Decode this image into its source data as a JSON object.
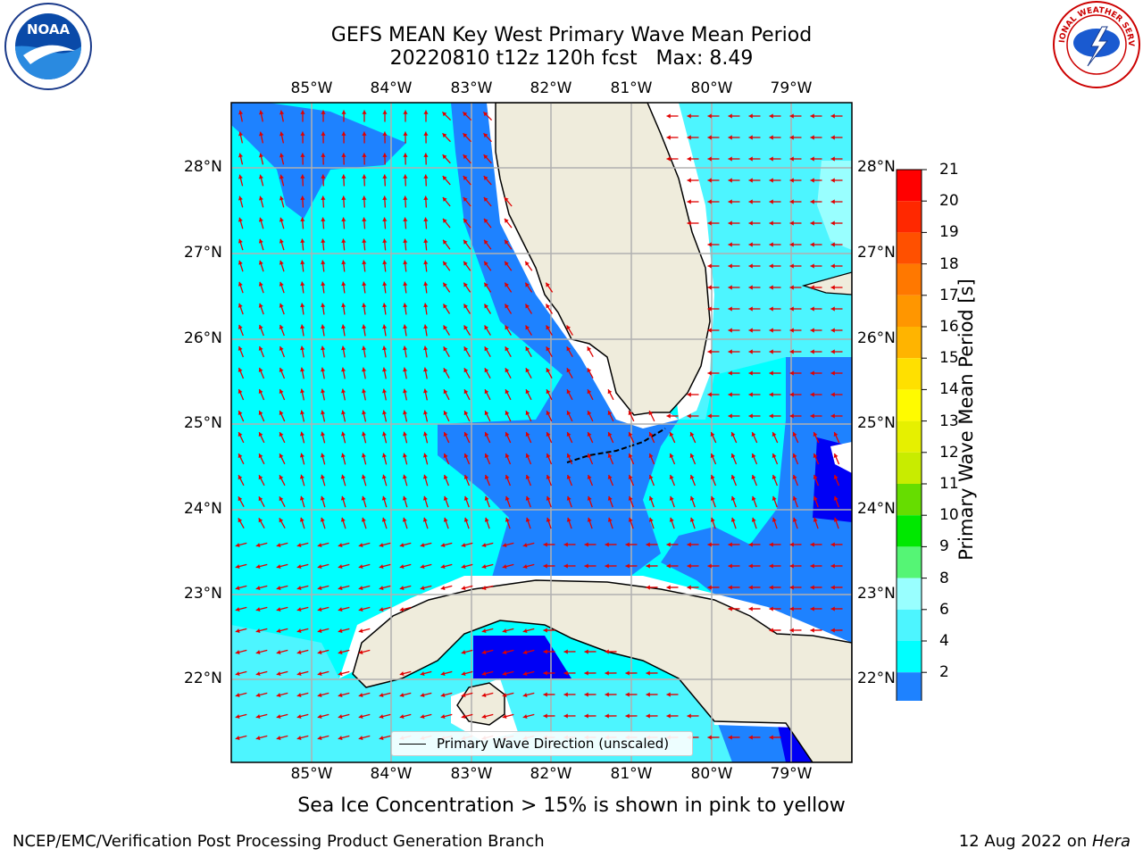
{
  "title": {
    "line1": "GEFS MEAN Key West Primary Wave Mean Period",
    "line2": "20220810 t12z 120h fcst   Max: 8.49"
  },
  "map": {
    "lon_labels": [
      "85°W",
      "84°W",
      "83°W",
      "82°W",
      "81°W",
      "80°W",
      "79°W"
    ],
    "lat_labels": [
      "28°N",
      "27°N",
      "26°N",
      "25°N",
      "24°N",
      "23°N",
      "22°N"
    ],
    "legend": "Primary Wave Direction (unscaled)",
    "colors": {
      "land": "#efecdc",
      "water_4_6": "#00ffff",
      "water_6_8": "#4df5ff",
      "water_8_9": "#99ffff",
      "water_2_4": "#1e82ff",
      "water_lt2": "#0000f5",
      "arrow": "#e00000"
    }
  },
  "colorbar": {
    "label": "Primary Wave Mean Period [s]",
    "ticks": [
      "21",
      "20",
      "19",
      "18",
      "17",
      "16",
      "15",
      "14",
      "13",
      "12",
      "11",
      "10",
      "9",
      "8",
      "6",
      "4",
      "2"
    ],
    "colors": [
      "#ff0000",
      "#ff2800",
      "#ff5000",
      "#ff7800",
      "#ff9600",
      "#ffb400",
      "#ffe000",
      "#fffb00",
      "#e6f000",
      "#c8ec00",
      "#66dd00",
      "#00e800",
      "#55f575",
      "#99ffff",
      "#4df5ff",
      "#00ffff",
      "#1e82ff"
    ]
  },
  "note": "Sea Ice Concentration > 15% is shown in pink to yellow",
  "footer": {
    "left": "NCEP/EMC/Verification Post Processing Product Generation Branch",
    "right_date": "12 Aug 2022 on ",
    "right_machine": "Hera"
  },
  "logos": {
    "left": "NOAA",
    "right": "NATIONAL WEATHER SERVICE"
  }
}
